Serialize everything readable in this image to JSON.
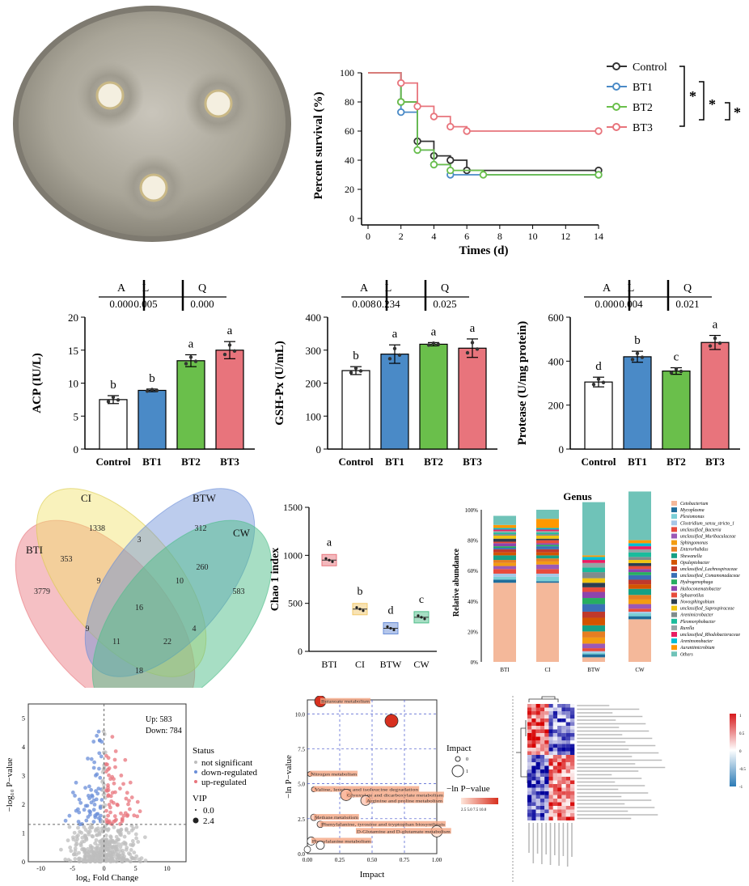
{
  "survival": {
    "xlabel": "Times (d)",
    "ylabel": "Percent survival (%)",
    "xticks": [
      "0",
      "2",
      "4",
      "6",
      "8",
      "10",
      "12",
      "14"
    ],
    "yticks": [
      "0",
      "20",
      "40",
      "60",
      "80",
      "100"
    ],
    "legend": [
      {
        "name": "Control",
        "color": "#333333"
      },
      {
        "name": "BT1",
        "color": "#4a8ac7"
      },
      {
        "name": "BT2",
        "color": "#6abf4b"
      },
      {
        "name": "BT3",
        "color": "#e8747c"
      }
    ],
    "sig": [
      "*",
      "*",
      "*"
    ]
  },
  "chart_data": [
    {
      "type": "line",
      "title": "",
      "xlabel": "Times (d)",
      "ylabel": "Percent survival (%)",
      "xlim": [
        0,
        14
      ],
      "ylim": [
        0,
        100
      ],
      "series": [
        {
          "name": "Control",
          "x": [
            0,
            2,
            3,
            4,
            5,
            6,
            14
          ],
          "y": [
            100,
            80,
            53,
            43,
            40,
            33,
            33
          ]
        },
        {
          "name": "BT1",
          "x": [
            0,
            2,
            3,
            4,
            5,
            14
          ],
          "y": [
            100,
            73,
            47,
            37,
            30,
            30
          ]
        },
        {
          "name": "BT2",
          "x": [
            0,
            2,
            3,
            4,
            5,
            7,
            14
          ],
          "y": [
            100,
            80,
            47,
            37,
            33,
            30,
            30
          ]
        },
        {
          "name": "BT3",
          "x": [
            0,
            2,
            3,
            4,
            5,
            6,
            14
          ],
          "y": [
            100,
            93,
            77,
            70,
            63,
            60,
            60
          ]
        }
      ]
    },
    {
      "type": "bar",
      "ylabel": "ACP (IU/L)",
      "ylim": [
        0,
        20
      ],
      "categories": [
        "Control",
        "BT1",
        "BT2",
        "BT3"
      ],
      "values": [
        7.5,
        8.9,
        13.4,
        15.0
      ],
      "errors": [
        0.6,
        0.2,
        0.9,
        1.3
      ],
      "letters": [
        "b",
        "b",
        "a",
        "a"
      ],
      "yticks": [
        "0",
        "5",
        "10",
        "15",
        "20"
      ],
      "table": {
        "headers": [
          "A",
          "L",
          "Q"
        ],
        "values": [
          "0.000",
          "0.005",
          "0.000"
        ]
      }
    },
    {
      "type": "bar",
      "ylabel": "GSH-Px (U/mL)",
      "ylim": [
        0,
        400
      ],
      "categories": [
        "Control",
        "BT1",
        "BT2",
        "BT3"
      ],
      "values": [
        238,
        288,
        318,
        306
      ],
      "errors": [
        12,
        28,
        5,
        28
      ],
      "letters": [
        "b",
        "a",
        "a",
        "a"
      ],
      "yticks": [
        "0",
        "100",
        "200",
        "300",
        "400"
      ],
      "table": {
        "headers": [
          "A",
          "L",
          "Q"
        ],
        "values": [
          "0.008",
          "0.234",
          "0.025"
        ]
      }
    },
    {
      "type": "bar",
      "ylabel": "Protease (U/mg protein)",
      "ylim": [
        0,
        600
      ],
      "categories": [
        "Control",
        "BT1",
        "BT2",
        "BT3"
      ],
      "values": [
        305,
        420,
        355,
        485
      ],
      "errors": [
        22,
        25,
        15,
        32
      ],
      "letters": [
        "d",
        "b",
        "c",
        "a"
      ],
      "yticks": [
        "0",
        "200",
        "400",
        "600"
      ],
      "table": {
        "headers": [
          "A",
          "L",
          "Q"
        ],
        "values": [
          "0.000",
          "0.004",
          "0.021"
        ]
      }
    },
    {
      "type": "box",
      "ylabel": "Chao 1 index",
      "ylim": [
        0,
        1500
      ],
      "categories": [
        "BTI",
        "CI",
        "BTW",
        "CW"
      ],
      "values": [
        950,
        440,
        240,
        355
      ],
      "letters": [
        "a",
        "b",
        "d",
        "c"
      ],
      "yticks": [
        "0",
        "500",
        "1000",
        "1500"
      ]
    }
  ],
  "colors": {
    "control": "#ffffff",
    "bt1": "#4a8ac7",
    "bt2": "#6abf4b",
    "bt3": "#e8747c"
  },
  "venn": {
    "labels": [
      "BTI",
      "CI",
      "BTW",
      "CW"
    ],
    "numbers": [
      "1338",
      "312",
      "3",
      "353",
      "260",
      "3779",
      "583",
      "9",
      "10",
      "16",
      "9",
      "4",
      "11",
      "22",
      "18"
    ]
  },
  "genus": {
    "title": "Genus",
    "ylabel": "Relative abundance",
    "yticks": [
      "0%",
      "20%",
      "40%",
      "60%",
      "80%",
      "100%"
    ],
    "categories": [
      "BTI",
      "CI",
      "BTW",
      "CW"
    ],
    "legend": [
      "Cetobacterium",
      "Mycoplasma",
      "Plesiomonas",
      "Clostridium_sensu_stricto_1",
      "unclassified_Bacteria",
      "unclassified_Muribaculaceae",
      "Sphingomonas",
      "Enterorhabdus",
      "Shewanella",
      "Opuleptobacter",
      "unclassified_Lachnospiraceae",
      "unclassified_Comamonadaceae",
      "Hydrogenophaga",
      "Halioconematobacter",
      "Sphaerotilus",
      "Novosphingobium",
      "unclassified_Saprospiraceae",
      "Arenimicrobacter",
      "Pleomorphobacter",
      "Rurella",
      "unclassified_Rhodobacteraceae",
      "Arenimonobacter",
      "Aurantimicrobium",
      "Others"
    ]
  },
  "volcano": {
    "up": "Up: 583",
    "down": "Down: 784",
    "status_title": "Status",
    "status": [
      "not significant",
      "down-regulated",
      "up-regulated"
    ],
    "vip_title": "VIP",
    "vip": [
      "0.0",
      "2.4"
    ],
    "xlabel": "log₂ Fold Change",
    "ylabel": "−log₁₀ P−value",
    "xticks": [
      "-10",
      "-5",
      "0",
      "5",
      "10"
    ],
    "yticks": [
      "0",
      "1",
      "2",
      "3",
      "4",
      "5"
    ]
  },
  "pathway": {
    "xlabel": "Impact",
    "ylabel": "−ln P−value",
    "xticks": [
      "0.00",
      "0.25",
      "0.50",
      "0.75",
      "1.00"
    ],
    "yticks": [
      "0.0",
      "2.5",
      "5.0",
      "7.5",
      "10.0"
    ],
    "impact_title": "Impact",
    "impact_vals": [
      "0",
      "1"
    ],
    "p_title": "−ln P−value",
    "p_ticks": "2.5 5.0 7.5 10.0",
    "labels": [
      "Butanoate metabolism",
      "Nitrogen metabolism",
      "Valine, leucine and isoleucine degradation",
      "Glyoxylate and dicarboxylate metabolism",
      "Arginine and proline metabolism",
      "Methane metabolism",
      "Phenylalanine, tyrosine and tryptophan biosynthesis",
      "D-Glutamine and D-glutamate metabolism",
      "Phenylalanine metabolism"
    ]
  },
  "heatmap": {
    "scale": [
      "1",
      "0.5",
      "0",
      "-0.5",
      "-1"
    ]
  }
}
